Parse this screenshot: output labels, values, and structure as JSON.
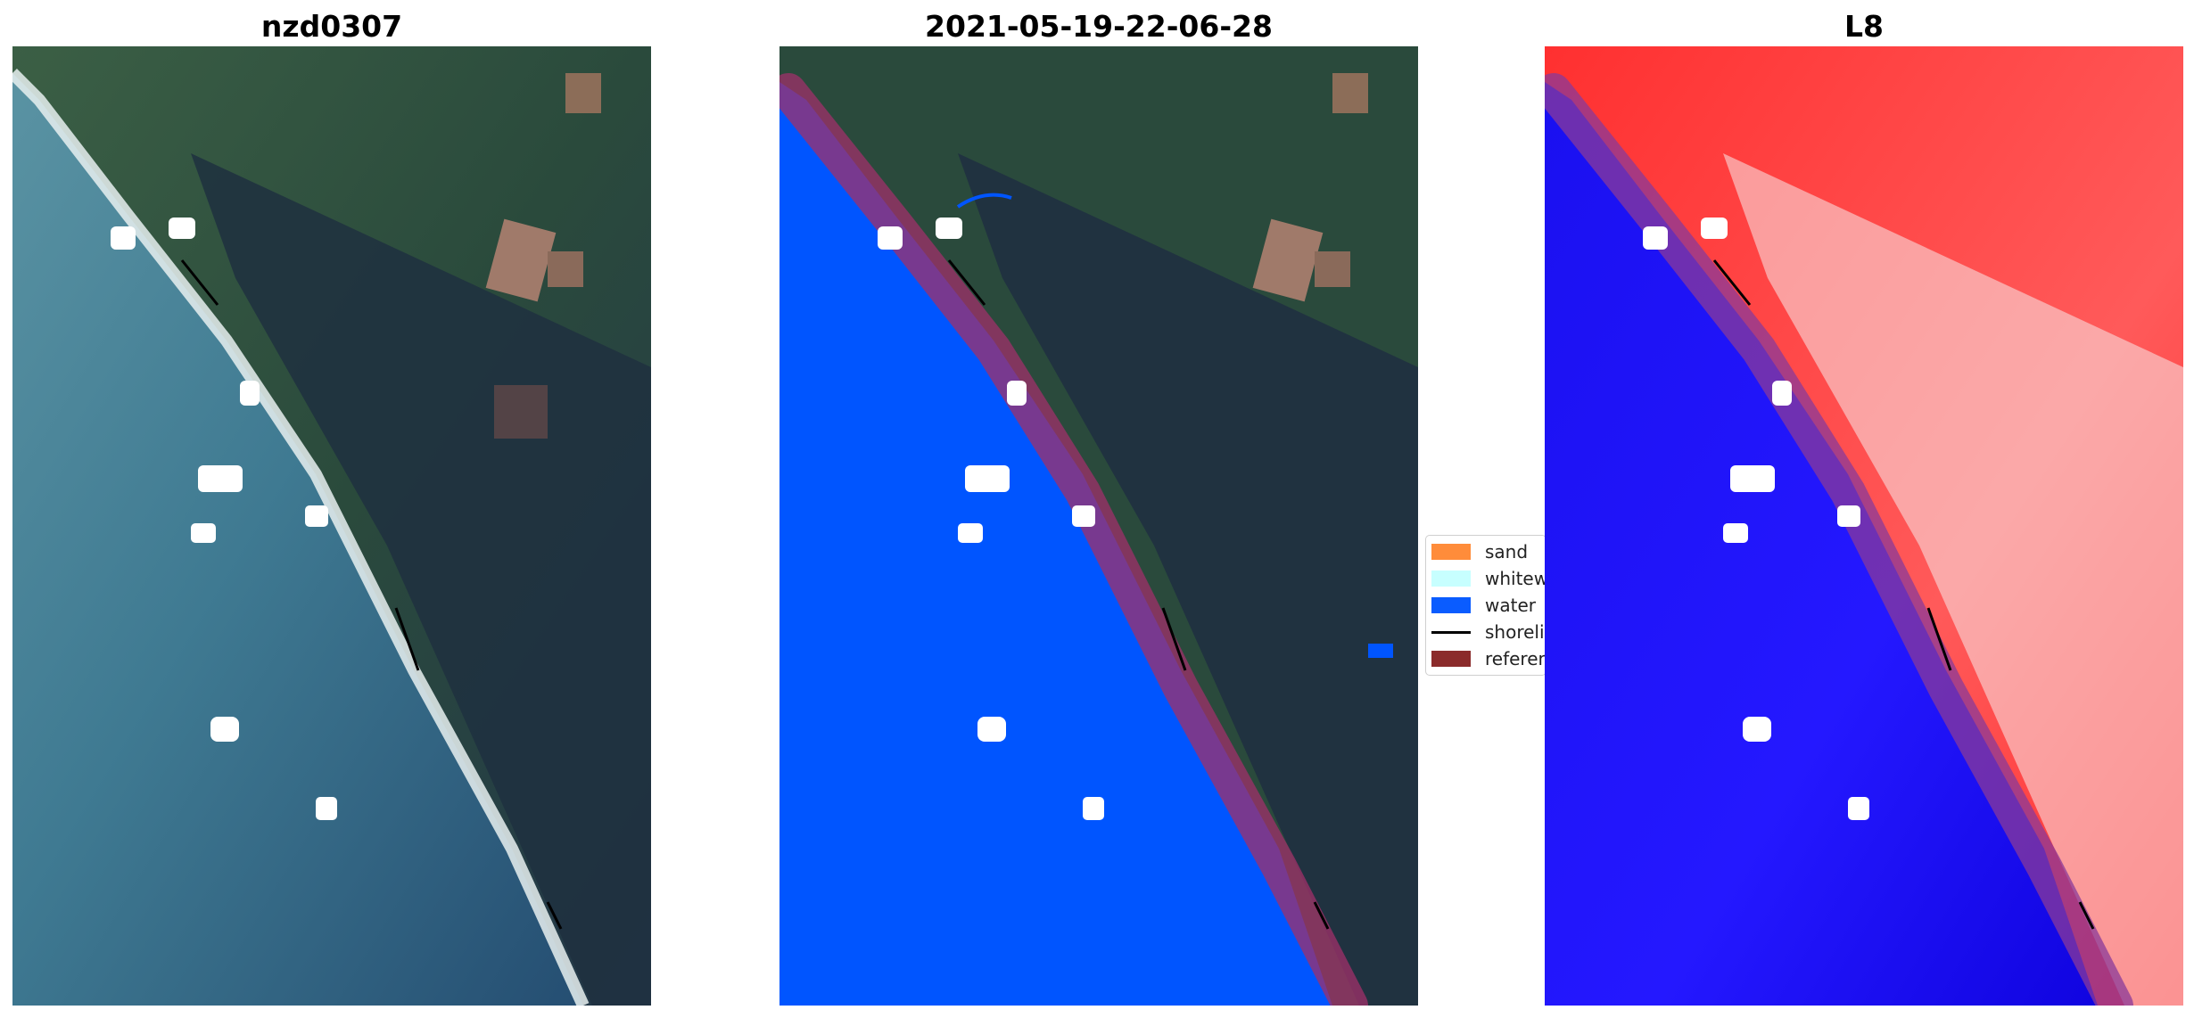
{
  "panels": [
    {
      "title": "nzd0307"
    },
    {
      "title": "2021-05-19-22-06-28"
    },
    {
      "title": "L8"
    }
  ],
  "legend": {
    "items": [
      {
        "label": "sand",
        "color": "#ff8c3a",
        "kind": "patch"
      },
      {
        "label": "whitewater",
        "color": "#c7ffff",
        "kind": "patch"
      },
      {
        "label": "water",
        "color": "#0a5cff",
        "kind": "patch"
      },
      {
        "label": "shoreline",
        "color": "#000000",
        "kind": "line"
      },
      {
        "label": "reference",
        "color": "#8b2b2b",
        "kind": "patch"
      }
    ]
  },
  "colors": {
    "water_class": "#0055ff",
    "buffer": "#a0306a",
    "land_dark": "#1f3040",
    "field_green": "#2f5a3a",
    "sea_blue": "#2f6c86",
    "index_red": "#ff4040",
    "index_blue": "#1a10f0"
  }
}
